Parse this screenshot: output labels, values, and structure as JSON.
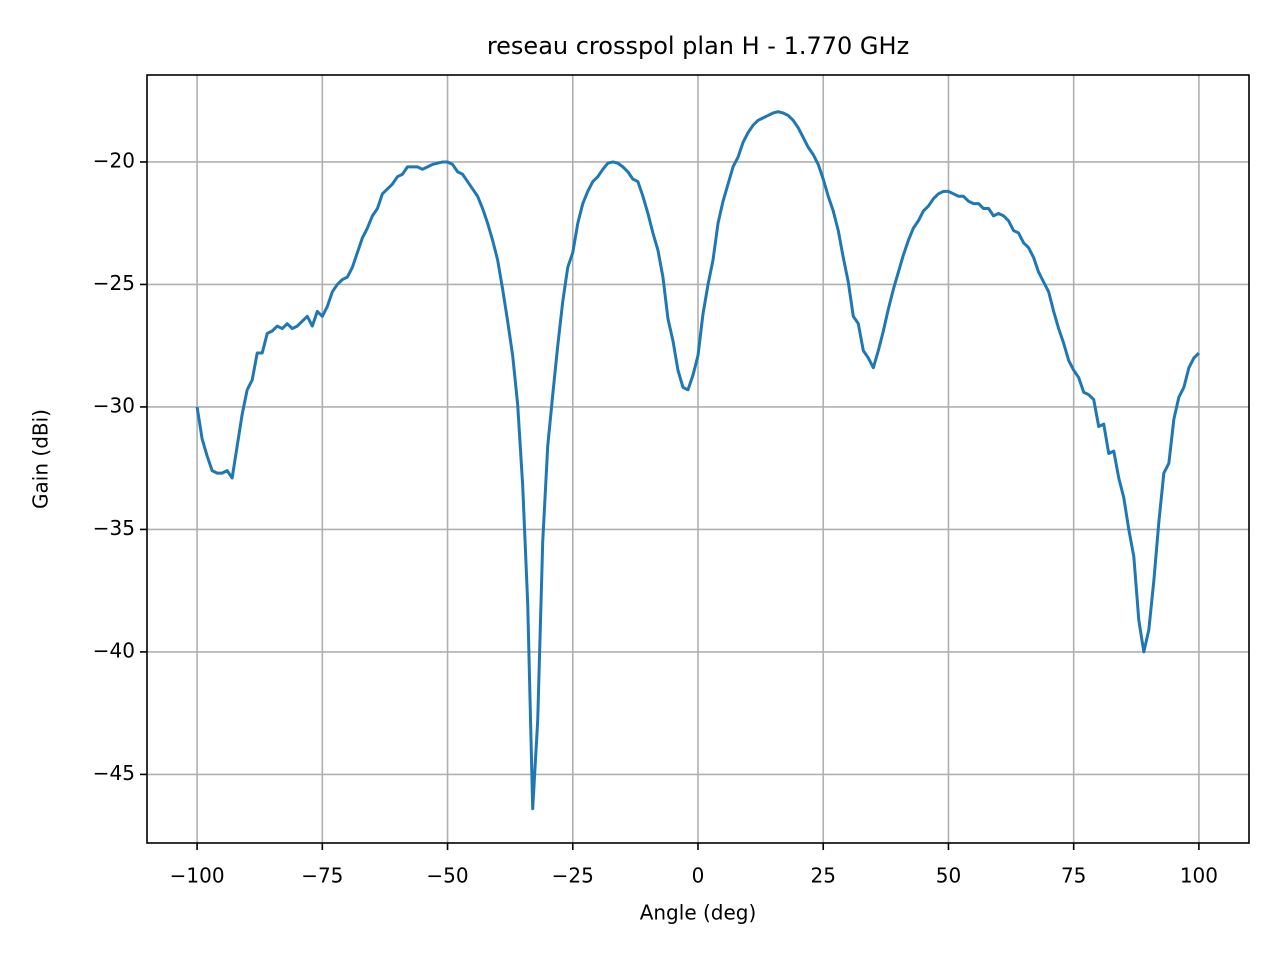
{
  "chart_data": {
    "type": "line",
    "title": "reseau crosspol plan H - 1.770 GHz",
    "x_label": "Angle (deg)",
    "y_label": "Gain (dBi)",
    "color": "#1f77b4",
    "grid": true,
    "xlim": [
      -110,
      110
    ],
    "ylim": [
      -47.8,
      -16.45
    ],
    "xticks": [
      {
        "value": -100,
        "label": "−100"
      },
      {
        "value": -75,
        "label": "−75"
      },
      {
        "value": -50,
        "label": "−50"
      },
      {
        "value": -25,
        "label": "−25"
      },
      0,
      25,
      50,
      75,
      100
    ],
    "yticks": [
      {
        "value": -45,
        "label": "−45"
      },
      {
        "value": -40,
        "label": "−40"
      },
      {
        "value": -35,
        "label": "−35"
      },
      {
        "value": -30,
        "label": "−30"
      },
      {
        "value": -25,
        "label": "−25"
      },
      {
        "value": -20,
        "label": "−20"
      }
    ],
    "x": [
      -100,
      -99,
      -98,
      -97,
      -96,
      -95,
      -94,
      -93,
      -92,
      -91,
      -90,
      -89,
      -88,
      -87,
      -86,
      -85,
      -84,
      -83,
      -82,
      -81,
      -80,
      -79,
      -78,
      -77,
      -76,
      -75,
      -74,
      -73,
      -72,
      -71,
      -70,
      -69,
      -68,
      -67,
      -66,
      -65,
      -64,
      -63,
      -62,
      -61,
      -60,
      -59,
      -58,
      -57,
      -56,
      -55,
      -54,
      -53,
      -52,
      -51,
      -50,
      -49,
      -48,
      -47,
      -46,
      -45,
      -44,
      -43,
      -42,
      -41,
      -40,
      -39,
      -38,
      -37,
      -36,
      -35,
      -34,
      -33,
      -32,
      -31,
      -30,
      -29,
      -28,
      -27,
      -26,
      -25,
      -24,
      -23,
      -22,
      -21,
      -20,
      -19,
      -18,
      -17,
      -16,
      -15,
      -14,
      -13,
      -12,
      -11,
      -10,
      -9,
      -8,
      -7,
      -6,
      -5,
      -4,
      -3,
      -2,
      -1,
      0,
      1,
      2,
      3,
      4,
      5,
      6,
      7,
      8,
      9,
      10,
      11,
      12,
      13,
      14,
      15,
      16,
      17,
      18,
      19,
      20,
      21,
      22,
      23,
      24,
      25,
      26,
      27,
      28,
      29,
      30,
      31,
      32,
      33,
      34,
      35,
      36,
      37,
      38,
      39,
      40,
      41,
      42,
      43,
      44,
      45,
      46,
      47,
      48,
      49,
      50,
      51,
      52,
      53,
      54,
      55,
      56,
      57,
      58,
      59,
      60,
      61,
      62,
      63,
      64,
      65,
      66,
      67,
      68,
      69,
      70,
      71,
      72,
      73,
      74,
      75,
      76,
      77,
      78,
      79,
      80,
      81,
      82,
      83,
      84,
      85,
      86,
      87,
      88,
      89,
      90,
      91,
      92,
      93,
      94,
      95,
      96,
      97,
      98,
      99,
      100
    ],
    "values": [
      -30.0,
      -31.3,
      -32.0,
      -32.6,
      -32.7,
      -32.7,
      -32.6,
      -32.9,
      -31.6,
      -30.3,
      -29.3,
      -28.9,
      -27.8,
      -27.8,
      -27.0,
      -26.9,
      -26.7,
      -26.8,
      -26.6,
      -26.8,
      -26.7,
      -26.5,
      -26.3,
      -26.7,
      -26.1,
      -26.3,
      -25.9,
      -25.3,
      -25.0,
      -24.8,
      -24.7,
      -24.3,
      -23.7,
      -23.1,
      -22.7,
      -22.2,
      -21.9,
      -21.3,
      -21.1,
      -20.9,
      -20.6,
      -20.5,
      -20.2,
      -20.2,
      -20.2,
      -20.3,
      -20.2,
      -20.1,
      -20.05,
      -20.0,
      -20.0,
      -20.1,
      -20.4,
      -20.5,
      -20.8,
      -21.1,
      -21.4,
      -21.9,
      -22.5,
      -23.2,
      -24.0,
      -25.2,
      -26.5,
      -27.9,
      -29.9,
      -33.2,
      -38.0,
      -46.4,
      -42.8,
      -35.5,
      -31.6,
      -29.5,
      -27.5,
      -25.7,
      -24.3,
      -23.7,
      -22.5,
      -21.7,
      -21.2,
      -20.8,
      -20.6,
      -20.3,
      -20.05,
      -20.0,
      -20.05,
      -20.2,
      -20.4,
      -20.7,
      -20.8,
      -21.4,
      -22.1,
      -22.9,
      -23.6,
      -24.7,
      -26.4,
      -27.3,
      -28.5,
      -29.2,
      -29.3,
      -28.7,
      -27.9,
      -26.2,
      -25.0,
      -24.0,
      -22.5,
      -21.6,
      -20.9,
      -20.2,
      -19.8,
      -19.2,
      -18.8,
      -18.5,
      -18.3,
      -18.2,
      -18.1,
      -18.0,
      -17.95,
      -18.0,
      -18.1,
      -18.3,
      -18.6,
      -19.0,
      -19.4,
      -19.7,
      -20.1,
      -20.7,
      -21.4,
      -22.0,
      -22.8,
      -23.9,
      -24.9,
      -26.3,
      -26.6,
      -27.7,
      -28.0,
      -28.4,
      -27.7,
      -26.9,
      -26.0,
      -25.2,
      -24.5,
      -23.8,
      -23.2,
      -22.7,
      -22.4,
      -22.0,
      -21.8,
      -21.5,
      -21.3,
      -21.2,
      -21.2,
      -21.3,
      -21.4,
      -21.4,
      -21.6,
      -21.7,
      -21.7,
      -21.9,
      -21.9,
      -22.2,
      -22.1,
      -22.2,
      -22.4,
      -22.8,
      -22.9,
      -23.3,
      -23.5,
      -23.9,
      -24.5,
      -24.9,
      -25.3,
      -26.1,
      -26.8,
      -27.4,
      -28.1,
      -28.5,
      -28.8,
      -29.4,
      -29.5,
      -29.7,
      -30.8,
      -30.7,
      -31.9,
      -31.8,
      -32.9,
      -33.7,
      -35.0,
      -36.1,
      -38.7,
      -40.0,
      -39.1,
      -37.1,
      -34.7,
      -32.7,
      -32.3,
      -30.5,
      -29.6,
      -29.2,
      -28.4,
      -28.0,
      -27.8
    ]
  }
}
